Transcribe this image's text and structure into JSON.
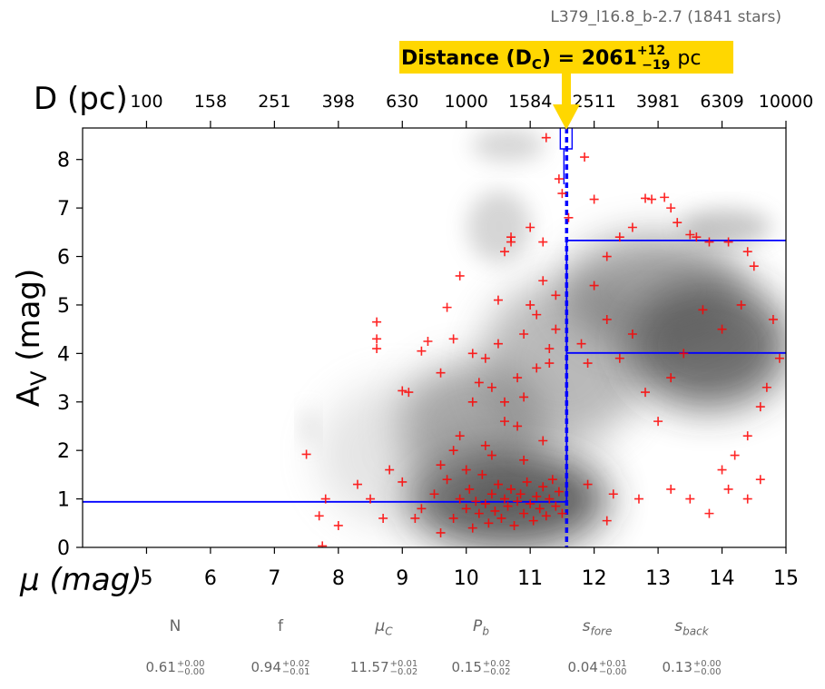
{
  "chart_data": {
    "type": "scatter",
    "title": "L379_l16.8_b-2.7 (1841 stars)",
    "xlabel": "μ (mag)",
    "ylabel": "A_V (mag)",
    "top_axis_label": "D (pc)",
    "xlim": [
      4,
      15
    ],
    "ylim": [
      0,
      8.65
    ],
    "x_ticks": [
      5,
      6,
      7,
      8,
      9,
      10,
      11,
      12,
      13,
      14,
      15
    ],
    "y_ticks": [
      0,
      1,
      2,
      3,
      4,
      5,
      6,
      7,
      8
    ],
    "top_ticks": [
      "100",
      "158",
      "251",
      "398",
      "630",
      "1000",
      "1584",
      "2511",
      "3981",
      "6309",
      "10000"
    ],
    "top_tick_positions_mu": [
      5,
      6,
      7,
      8,
      9,
      10,
      11,
      12,
      13,
      14,
      15
    ],
    "distance_annotation": {
      "label": "Distance (D",
      "sub": "C",
      "value": "2061",
      "err_plus": "+12",
      "err_minus": "−19",
      "unit": "pc",
      "mu": 11.57,
      "color": "#FFD700"
    },
    "model_lines": {
      "mu_c": 11.57,
      "av_fore": 0.94,
      "av_back_upper": 6.33,
      "av_back_lower": 4.01
    },
    "series": [
      {
        "marker": "+",
        "color": "#FF0000",
        "points": [
          [
            8.6,
            4.65
          ],
          [
            8.6,
            4.3
          ],
          [
            8.6,
            4.1
          ],
          [
            9.0,
            3.23
          ],
          [
            9.1,
            3.2
          ],
          [
            9.3,
            4.05
          ],
          [
            9.4,
            4.25
          ],
          [
            9.6,
            3.6
          ],
          [
            9.7,
            4.95
          ],
          [
            9.8,
            2.0
          ],
          [
            9.8,
            4.3
          ],
          [
            9.9,
            5.6
          ],
          [
            10.1,
            3.0
          ],
          [
            10.1,
            4.0
          ],
          [
            10.2,
            3.4
          ],
          [
            10.3,
            3.9
          ],
          [
            10.4,
            3.3
          ],
          [
            10.5,
            4.2
          ],
          [
            10.5,
            5.1
          ],
          [
            10.6,
            3.0
          ],
          [
            10.6,
            6.1
          ],
          [
            10.7,
            6.3
          ],
          [
            10.7,
            6.4
          ],
          [
            10.8,
            2.5
          ],
          [
            10.8,
            3.5
          ],
          [
            10.9,
            4.4
          ],
          [
            10.9,
            3.1
          ],
          [
            11.0,
            6.6
          ],
          [
            11.0,
            5.0
          ],
          [
            11.1,
            4.8
          ],
          [
            11.1,
            3.7
          ],
          [
            11.2,
            5.5
          ],
          [
            11.2,
            6.3
          ],
          [
            11.3,
            4.1
          ],
          [
            11.3,
            3.8
          ],
          [
            11.4,
            5.2
          ],
          [
            11.4,
            4.5
          ],
          [
            11.45,
            7.6
          ],
          [
            11.5,
            7.3
          ],
          [
            11.6,
            6.8
          ],
          [
            11.85,
            8.05
          ],
          [
            11.25,
            8.45
          ],
          [
            12.0,
            7.18
          ],
          [
            12.2,
            6.0
          ],
          [
            12.4,
            6.4
          ],
          [
            12.6,
            6.6
          ],
          [
            12.8,
            7.2
          ],
          [
            12.9,
            7.18
          ],
          [
            13.1,
            7.22
          ],
          [
            13.2,
            7.0
          ],
          [
            13.3,
            6.7
          ],
          [
            13.5,
            6.45
          ],
          [
            13.6,
            6.4
          ],
          [
            13.8,
            6.3
          ],
          [
            14.1,
            6.3
          ],
          [
            14.4,
            6.1
          ],
          [
            14.5,
            5.8
          ],
          [
            14.3,
            5.0
          ],
          [
            14.0,
            4.5
          ],
          [
            13.7,
            4.9
          ],
          [
            13.4,
            4.0
          ],
          [
            13.2,
            3.5
          ],
          [
            13.0,
            2.6
          ],
          [
            12.8,
            3.2
          ],
          [
            12.6,
            4.4
          ],
          [
            12.4,
            3.9
          ],
          [
            12.2,
            4.7
          ],
          [
            12.0,
            5.4
          ],
          [
            11.9,
            3.8
          ],
          [
            11.8,
            4.2
          ],
          [
            14.8,
            4.7
          ],
          [
            14.9,
            3.9
          ],
          [
            14.7,
            3.3
          ],
          [
            14.6,
            2.9
          ],
          [
            14.4,
            2.3
          ],
          [
            14.2,
            1.9
          ],
          [
            14.0,
            1.6
          ],
          [
            14.6,
            1.4
          ],
          [
            14.4,
            1.0
          ],
          [
            14.1,
            1.2
          ],
          [
            13.8,
            0.7
          ],
          [
            13.5,
            1.0
          ],
          [
            13.2,
            1.2
          ],
          [
            12.7,
            1.0
          ],
          [
            12.3,
            1.1
          ],
          [
            12.2,
            0.55
          ],
          [
            11.9,
            1.3
          ],
          [
            7.5,
            1.92
          ],
          [
            7.7,
            0.65
          ],
          [
            7.8,
            1.0
          ],
          [
            7.75,
            0.03
          ],
          [
            8.0,
            0.45
          ],
          [
            8.3,
            1.3
          ],
          [
            8.5,
            1.0
          ],
          [
            8.7,
            0.6
          ],
          [
            8.8,
            1.6
          ],
          [
            9.0,
            1.35
          ],
          [
            9.2,
            0.6
          ],
          [
            9.3,
            0.8
          ],
          [
            9.5,
            1.1
          ],
          [
            9.6,
            0.3
          ],
          [
            9.7,
            1.4
          ],
          [
            9.8,
            0.6
          ],
          [
            9.9,
            1.0
          ],
          [
            10.0,
            0.8
          ],
          [
            10.05,
            1.2
          ],
          [
            10.1,
            0.4
          ],
          [
            10.15,
            0.95
          ],
          [
            10.2,
            0.7
          ],
          [
            10.25,
            1.5
          ],
          [
            10.3,
            0.9
          ],
          [
            10.35,
            0.5
          ],
          [
            10.4,
            1.1
          ],
          [
            10.45,
            0.75
          ],
          [
            10.5,
            1.3
          ],
          [
            10.55,
            0.6
          ],
          [
            10.6,
            1.0
          ],
          [
            10.65,
            0.85
          ],
          [
            10.7,
            1.2
          ],
          [
            10.75,
            0.45
          ],
          [
            10.8,
            0.95
          ],
          [
            10.85,
            1.1
          ],
          [
            10.9,
            0.7
          ],
          [
            10.95,
            1.35
          ],
          [
            11.0,
            0.9
          ],
          [
            11.05,
            0.55
          ],
          [
            11.1,
            1.05
          ],
          [
            11.15,
            0.8
          ],
          [
            11.2,
            1.25
          ],
          [
            11.25,
            0.65
          ],
          [
            11.3,
            1.0
          ],
          [
            11.35,
            1.4
          ],
          [
            11.4,
            0.85
          ],
          [
            11.45,
            1.15
          ],
          [
            11.5,
            0.7
          ],
          [
            10.3,
            2.1
          ],
          [
            10.6,
            2.6
          ],
          [
            10.9,
            1.8
          ],
          [
            11.2,
            2.2
          ],
          [
            10.0,
            1.6
          ],
          [
            9.6,
            1.7
          ],
          [
            9.9,
            2.3
          ],
          [
            10.4,
            1.9
          ]
        ]
      }
    ]
  },
  "stats": {
    "labels": [
      "N",
      "f",
      "μ",
      "P",
      "s",
      "s"
    ],
    "label_subs": [
      "",
      "",
      "C",
      "b",
      "fore",
      "back"
    ],
    "values": [
      {
        "v": "0.61",
        "plus": "+0.00",
        "minus": "−0.00"
      },
      {
        "v": "0.94",
        "plus": "+0.02",
        "minus": "−0.01"
      },
      {
        "v": "11.57",
        "plus": "+0.01",
        "minus": "−0.02"
      },
      {
        "v": "0.15",
        "plus": "+0.02",
        "minus": "−0.02"
      },
      {
        "v": "0.04",
        "plus": "+0.01",
        "minus": "−0.00"
      },
      {
        "v": "0.13",
        "plus": "+0.00",
        "minus": "−0.00"
      }
    ]
  }
}
